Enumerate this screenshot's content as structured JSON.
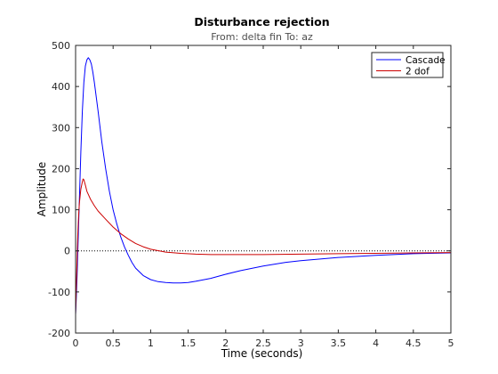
{
  "chart_data": {
    "type": "line",
    "title": "Disturbance rejection",
    "subtitle": "From: delta fin  To: az",
    "xlabel": "Time (seconds)",
    "ylabel": "Amplitude",
    "xlim": [
      0,
      5
    ],
    "ylim": [
      -200,
      500
    ],
    "xticks": [
      "0",
      "0.5",
      "1",
      "1.5",
      "2",
      "2.5",
      "3",
      "3.5",
      "4",
      "4.5",
      "5"
    ],
    "yticks": [
      "-200",
      "-100",
      "0",
      "100",
      "200",
      "300",
      "400",
      "500"
    ],
    "grid": false,
    "legend_position": "top-right",
    "reference_line": {
      "y": 0,
      "style": "dotted"
    },
    "series": [
      {
        "name": "Cascade",
        "color": "#0000ff",
        "x": [
          0,
          0.01,
          0.02,
          0.03,
          0.05,
          0.07,
          0.09,
          0.11,
          0.13,
          0.15,
          0.17,
          0.19,
          0.21,
          0.23,
          0.25,
          0.3,
          0.35,
          0.4,
          0.45,
          0.5,
          0.55,
          0.6,
          0.65,
          0.7,
          0.75,
          0.8,
          0.9,
          1.0,
          1.1,
          1.2,
          1.3,
          1.4,
          1.5,
          1.6,
          1.8,
          2.0,
          2.2,
          2.5,
          2.8,
          3.0,
          3.5,
          4.0,
          4.5,
          5.0
        ],
        "y": [
          -155,
          -115,
          -60,
          0,
          120,
          240,
          340,
          410,
          450,
          465,
          470,
          465,
          455,
          435,
          410,
          340,
          265,
          200,
          145,
          100,
          65,
          35,
          10,
          -10,
          -28,
          -42,
          -60,
          -70,
          -75,
          -77,
          -78,
          -78,
          -77,
          -74,
          -67,
          -57,
          -48,
          -37,
          -28,
          -24,
          -16,
          -11,
          -7,
          -5
        ]
      },
      {
        "name": "2 dof",
        "color": "#cc0000",
        "x": [
          0,
          0.01,
          0.02,
          0.03,
          0.04,
          0.05,
          0.07,
          0.09,
          0.1,
          0.11,
          0.13,
          0.15,
          0.2,
          0.25,
          0.3,
          0.4,
          0.5,
          0.6,
          0.7,
          0.8,
          0.9,
          1.0,
          1.2,
          1.4,
          1.6,
          1.8,
          2.0,
          2.5,
          3.0,
          3.5,
          4.0,
          4.5,
          5.0
        ],
        "y": [
          -155,
          -90,
          -20,
          40,
          85,
          115,
          150,
          168,
          175,
          173,
          160,
          145,
          125,
          110,
          97,
          77,
          58,
          42,
          29,
          18,
          10,
          4,
          -3,
          -6,
          -8,
          -9,
          -9,
          -9,
          -8,
          -7,
          -6,
          -5,
          -4
        ]
      }
    ]
  }
}
